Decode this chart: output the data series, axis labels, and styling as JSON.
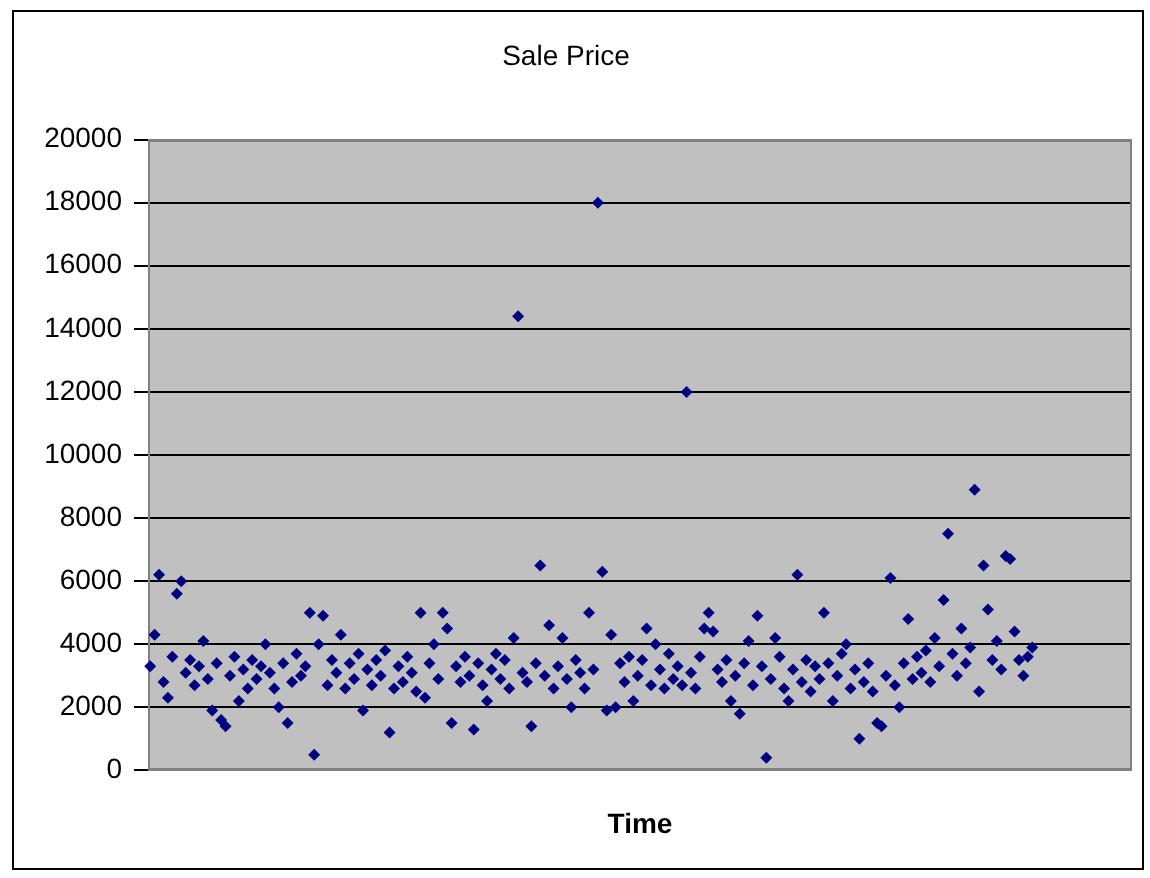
{
  "chart_data": {
    "type": "scatter",
    "title": "Sale Price",
    "xlabel": "Time",
    "categories": [
      null,
      null,
      null,
      null,
      null,
      null,
      null,
      null,
      null,
      null,
      null,
      null,
      null,
      null,
      null,
      null,
      null,
      null,
      null,
      null,
      null,
      null,
      null,
      null,
      null,
      null,
      null,
      null,
      null,
      null,
      null,
      null,
      null,
      null,
      null,
      null,
      null,
      null,
      null,
      null,
      null,
      null,
      null,
      null,
      null,
      null,
      null,
      null,
      null,
      null,
      null,
      null,
      null,
      null,
      null,
      null,
      null,
      null,
      null,
      null,
      null,
      null,
      null,
      null,
      null,
      null,
      null,
      null,
      null,
      null,
      null,
      null,
      null,
      null,
      null,
      null,
      null,
      null,
      null,
      null,
      null,
      null,
      null,
      null,
      null,
      null,
      null,
      null,
      null,
      null,
      null,
      null,
      null,
      null,
      null,
      null,
      null,
      null,
      null,
      null,
      null,
      null,
      null,
      null,
      null,
      null,
      null,
      null,
      null,
      null,
      null,
      null,
      null,
      null,
      null,
      null,
      null,
      null,
      null,
      null,
      null,
      null,
      null,
      null,
      null,
      null,
      null,
      null,
      null,
      null,
      null,
      null,
      null,
      null,
      null,
      null,
      null,
      null,
      null,
      null,
      null,
      null,
      null,
      null,
      null,
      null,
      null,
      null,
      null,
      null,
      null,
      null,
      null,
      null,
      null,
      null,
      null,
      null,
      null,
      null,
      null,
      null,
      null,
      null,
      null,
      null,
      null,
      null,
      null,
      null,
      null,
      null,
      null,
      null,
      null,
      null,
      null,
      null,
      null,
      null,
      null,
      null,
      null,
      null,
      null,
      null,
      null,
      null,
      null,
      null,
      null,
      null,
      null,
      null,
      null,
      null,
      null,
      null,
      null,
      null,
      null,
      null,
      null,
      null,
      null,
      null,
      null,
      null,
      null,
      null,
      null,
      null,
      null,
      null,
      null,
      null,
      null,
      null,
      null,
      null,
      null,
      null
    ],
    "values": [
      3300,
      4300,
      6200,
      2800,
      2300,
      3600,
      5600,
      6000,
      3100,
      3500,
      2700,
      3300,
      4100,
      2900,
      1900,
      3400,
      1600,
      1400,
      3000,
      3600,
      2200,
      3200,
      2600,
      3500,
      2900,
      3300,
      4000,
      3100,
      2600,
      2000,
      3400,
      1500,
      2800,
      3700,
      3000,
      3300,
      5000,
      500,
      4000,
      4900,
      2700,
      3500,
      3100,
      4300,
      2600,
      3400,
      2900,
      3700,
      1900,
      3200,
      2700,
      3500,
      3000,
      3800,
      1200,
      2600,
      3300,
      2800,
      3600,
      3100,
      2500,
      5000,
      2300,
      3400,
      4000,
      2900,
      5000,
      4500,
      1500,
      3300,
      2800,
      3600,
      3000,
      1300,
      3400,
      2700,
      2200,
      3200,
      3700,
      2900,
      3500,
      2600,
      4200,
      14400,
      3100,
      2800,
      1400,
      3400,
      6500,
      3000,
      4600,
      2600,
      3300,
      4200,
      2900,
      2000,
      3500,
      3100,
      2600,
      5000,
      3200,
      18000,
      6300,
      1900,
      4300,
      2000,
      3400,
      2800,
      3600,
      2200,
      3000,
      3500,
      4500,
      2700,
      4000,
      3200,
      2600,
      3700,
      2900,
      3300,
      2700,
      12000,
      3100,
      2600,
      3600,
      4500,
      5000,
      4400,
      3200,
      2800,
      3500,
      2200,
      3000,
      1800,
      3400,
      4100,
      2700,
      4900,
      3300,
      400,
      2900,
      4200,
      3600,
      2600,
      2200,
      3200,
      6200,
      2800,
      3500,
      2500,
      3300,
      2900,
      5000,
      3400,
      2200,
      3000,
      3700,
      4000,
      2600,
      3200,
      1000,
      2800,
      3400,
      2500,
      1500,
      1400,
      3000,
      6100,
      2700,
      2000,
      3400,
      4800,
      2900,
      3600,
      3100,
      3800,
      2800,
      4200,
      3300,
      5400,
      7500,
      3700,
      3000,
      4500,
      3400,
      3900,
      8900,
      2500,
      6500,
      5100,
      3500,
      4100,
      3200,
      6800,
      6700,
      4400,
      3500,
      3000,
      3600,
      3900,
      null,
      null,
      null,
      null,
      null,
      null,
      null,
      null,
      null,
      null,
      null,
      null,
      null,
      null,
      null,
      null,
      null,
      null,
      null,
      null,
      null,
      null
    ],
    "color": "#000080",
    "marker": "diamond",
    "ylim": [
      0,
      20000
    ],
    "yticks": [
      0,
      2000,
      4000,
      6000,
      8000,
      10000,
      12000,
      14000,
      16000,
      18000,
      20000
    ],
    "grid": "y"
  }
}
